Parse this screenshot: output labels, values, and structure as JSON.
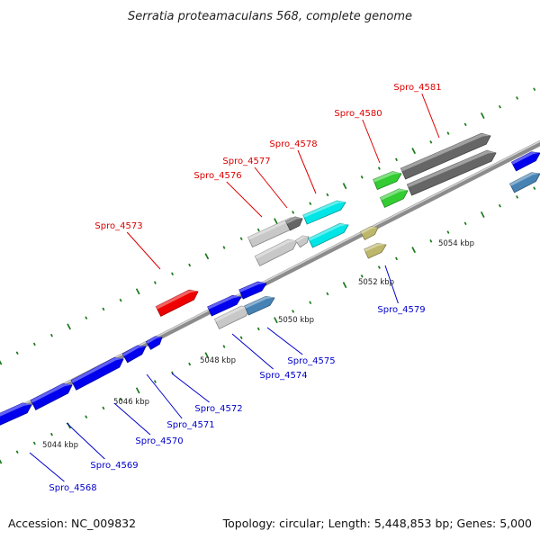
{
  "title": "Serratia proteamaculans 568, complete genome",
  "footer": {
    "accession": "Accession: NC_009832",
    "summary": "Topology: circular; Length: 5,448,853 bp; Genes: 5,000"
  },
  "scale_labels": [
    "5044 kbp",
    "5046 kbp",
    "5048 kbp",
    "5050 kbp",
    "5052 kbp",
    "5054 kbp"
  ],
  "colors": {
    "forward_label": "#dd0000",
    "reverse_label": "#0000cc",
    "backbone": "#888888",
    "tick": "#1a7a1a"
  },
  "genes": [
    {
      "label": "Spro_4568",
      "strand": "reverse",
      "color": "#0000ee"
    },
    {
      "label": "Spro_4569",
      "strand": "reverse",
      "color": "#0000ee"
    },
    {
      "label": "Spro_4570",
      "strand": "reverse",
      "color": "#0000ee"
    },
    {
      "label": "Spro_4571",
      "strand": "reverse",
      "color": "#0000ee"
    },
    {
      "label": "Spro_4572",
      "strand": "reverse",
      "color": "#0000ee"
    },
    {
      "label": "Spro_4573",
      "strand": "forward",
      "color": "#ee0000"
    },
    {
      "label": "Spro_4574",
      "strand": "reverse",
      "color": "#c8c8c8"
    },
    {
      "label": "Spro_4575",
      "strand": "reverse",
      "color": "#4682b4"
    },
    {
      "label": "Spro_4576",
      "strand": "forward",
      "color": "#c8c8c8"
    },
    {
      "label": "Spro_4577",
      "strand": "forward",
      "color": "#666666"
    },
    {
      "label": "Spro_4578",
      "strand": "forward",
      "color": "#00e5e5"
    },
    {
      "label": "Spro_4579",
      "strand": "reverse",
      "color": "#bdb76b"
    },
    {
      "label": "Spro_4580",
      "strand": "forward",
      "color": "#33cc33"
    },
    {
      "label": "Spro_4581",
      "strand": "forward",
      "color": "#666666"
    }
  ]
}
